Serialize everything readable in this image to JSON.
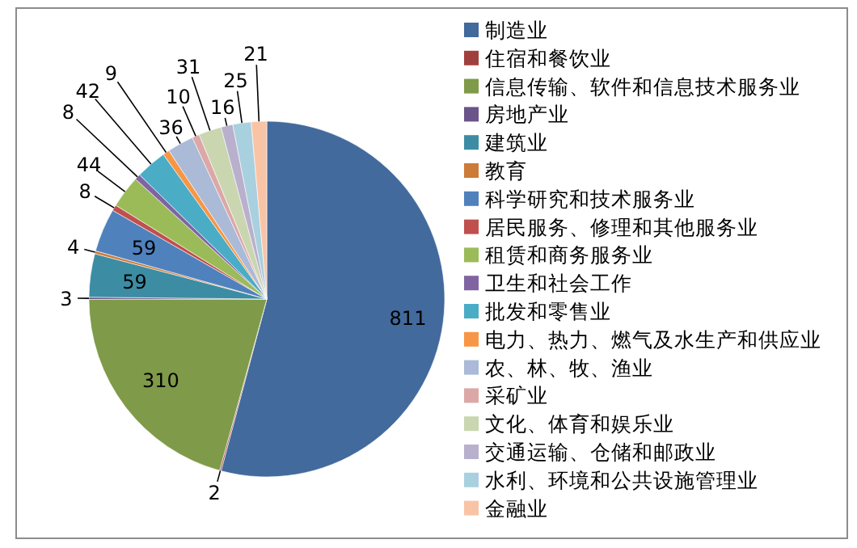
{
  "chart_data": {
    "type": "pie",
    "data_labels": true,
    "legend": "right",
    "categories": [
      "制造业",
      "住宿和餐饮业",
      "信息传输、软件和信息技术服务业",
      "房地产业",
      "建筑业",
      "教育",
      "科学研究和技术服务业",
      "居民服务、修理和其他服务业",
      "租赁和商务服务业",
      "卫生和社会工作",
      "批发和零售业",
      "电力、热力、燃气及水生产和供应业",
      "农、林、牧、渔业",
      "采矿业",
      "文化、体育和娱乐业",
      "交通运输、仓储和邮政业",
      "水利、环境和公共设施管理业",
      "金融业"
    ],
    "values": [
      811,
      2,
      310,
      3,
      59,
      4,
      59,
      8,
      44,
      8,
      42,
      9,
      36,
      10,
      31,
      16,
      25,
      21
    ],
    "colors": [
      "#426a9c",
      "#a0403d",
      "#7f9a48",
      "#6a548a",
      "#3c8da3",
      "#cc7b38",
      "#4f81bd",
      "#c0504d",
      "#9bbb59",
      "#8064a2",
      "#4bacc6",
      "#f79646",
      "#aabad7",
      "#dba8a7",
      "#c9d6b0",
      "#b9b0cd",
      "#a9d0de",
      "#f9c4a6"
    ]
  }
}
